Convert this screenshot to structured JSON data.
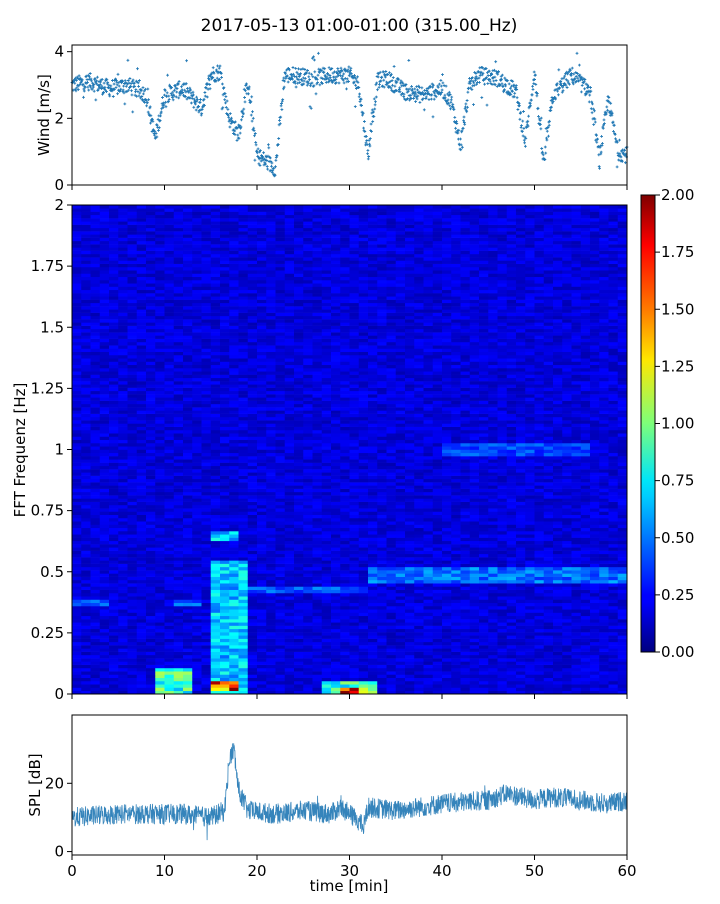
{
  "chart_data": [
    {
      "type": "scatter",
      "title": "2017-05-13 01:00-01:00 (315.00_Hz)",
      "ylabel": "Wind [m/s]",
      "xlim": [
        0,
        60
      ],
      "ylim": [
        0,
        4.2
      ],
      "yticks": [
        "0",
        "2",
        "4"
      ],
      "ytick_values": [
        0,
        2,
        4
      ],
      "color": "#1f77b4",
      "profile_x": [
        0,
        2,
        4,
        6,
        8,
        9,
        10,
        12,
        14,
        15,
        16,
        17,
        18,
        19,
        20,
        21,
        22,
        23,
        24,
        26,
        28,
        30,
        31,
        32,
        33,
        34,
        36,
        38,
        40,
        41,
        42,
        43,
        44,
        46,
        48,
        49,
        50,
        51,
        52,
        54,
        56,
        57,
        58,
        59,
        60
      ],
      "profile_y": [
        3.0,
        3.1,
        2.9,
        3.0,
        2.7,
        1.4,
        2.7,
        2.9,
        2.3,
        3.3,
        3.4,
        2.0,
        1.5,
        3.1,
        0.9,
        0.7,
        0.5,
        3.3,
        3.3,
        3.2,
        3.3,
        3.3,
        3.0,
        0.9,
        3.1,
        3.2,
        2.8,
        2.7,
        2.9,
        2.5,
        1.2,
        3.0,
        3.3,
        3.2,
        2.8,
        1.3,
        3.4,
        0.6,
        2.7,
        3.3,
        2.8,
        0.8,
        2.6,
        1.0,
        0.9
      ]
    },
    {
      "type": "heatmap",
      "ylabel": "FFT Frequenz [Hz]",
      "xlim": [
        0,
        60
      ],
      "ylim": [
        0,
        2
      ],
      "yticks": [
        "0",
        "0.25",
        "0.5",
        "0.75",
        "1",
        "1.25",
        "1.5",
        "1.75",
        "2"
      ],
      "ytick_values": [
        0,
        0.25,
        0.5,
        0.75,
        1,
        1.25,
        1.5,
        1.75,
        2
      ],
      "colormap": "jet",
      "colorbar": {
        "range": [
          0,
          2
        ],
        "ticks": [
          "0.00",
          "0.25",
          "0.50",
          "0.75",
          "1.00",
          "1.25",
          "1.50",
          "1.75",
          "2.00"
        ],
        "tick_values": [
          0,
          0.25,
          0.5,
          0.75,
          1,
          1.25,
          1.5,
          1.75,
          2
        ]
      },
      "background_level": 0.18,
      "features": [
        {
          "x0": 9.5,
          "x1": 12.5,
          "y0": 0,
          "y1": 0.1,
          "level": 1.0
        },
        {
          "x0": 15,
          "x1": 19,
          "y0": 0,
          "y1": 0.55,
          "level": 0.75
        },
        {
          "x0": 15.5,
          "x1": 18,
          "y0": 0.63,
          "y1": 0.66,
          "level": 0.8
        },
        {
          "x0": 15.5,
          "x1": 17.5,
          "y0": 0.02,
          "y1": 0.05,
          "level": 1.9
        },
        {
          "x0": 27,
          "x1": 33,
          "y0": 0,
          "y1": 0.05,
          "level": 1.0
        },
        {
          "x0": 29.5,
          "x1": 31.5,
          "y0": 0.005,
          "y1": 0.025,
          "level": 1.9
        },
        {
          "x0": 0,
          "x1": 4,
          "y0": 0.36,
          "y1": 0.39,
          "level": 0.55
        },
        {
          "x0": 11,
          "x1": 14,
          "y0": 0.36,
          "y1": 0.38,
          "level": 0.5
        },
        {
          "x0": 19,
          "x1": 32,
          "y0": 0.41,
          "y1": 0.44,
          "level": 0.5
        },
        {
          "x0": 32,
          "x1": 60,
          "y0": 0.45,
          "y1": 0.52,
          "level": 0.55
        },
        {
          "x0": 40,
          "x1": 56,
          "y0": 0.98,
          "y1": 1.02,
          "level": 0.45
        }
      ]
    },
    {
      "type": "line",
      "ylabel": "SPL [dB]",
      "xlabel": "time [min]",
      "xlim": [
        0,
        60
      ],
      "ylim": [
        -1,
        40
      ],
      "xticks": [
        "0",
        "10",
        "20",
        "30",
        "40",
        "50",
        "60"
      ],
      "xtick_values": [
        0,
        10,
        20,
        30,
        40,
        50,
        60
      ],
      "yticks": [
        "0",
        "20"
      ],
      "ytick_values": [
        0,
        20
      ],
      "color": "#1f77b4",
      "profile_x": [
        0,
        5,
        10,
        12,
        15,
        16.5,
        17,
        17.5,
        18,
        19,
        22,
        25,
        28,
        29,
        30,
        31,
        31.5,
        32,
        35,
        40,
        45,
        47,
        50,
        52,
        55,
        58,
        60
      ],
      "profile_y": [
        10,
        11,
        11,
        11,
        10,
        12,
        27,
        30,
        18,
        12,
        11,
        12,
        11,
        13,
        11,
        9,
        7,
        13,
        12,
        14,
        15,
        17,
        15,
        16,
        15,
        14,
        15
      ]
    }
  ]
}
